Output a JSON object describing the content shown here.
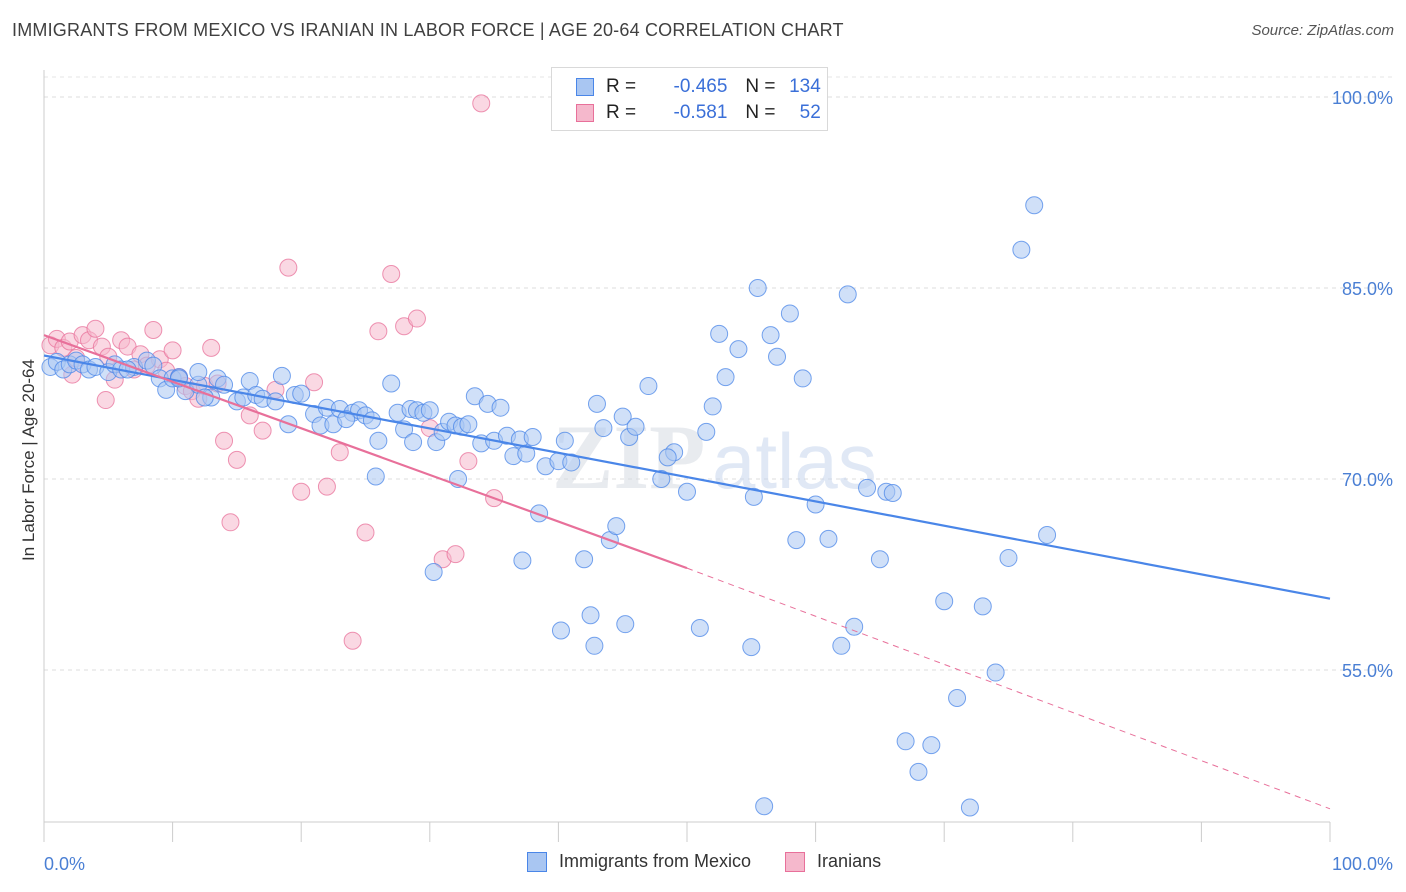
{
  "title": "IMMIGRANTS FROM MEXICO VS IRANIAN IN LABOR FORCE | AGE 20-64 CORRELATION CHART",
  "source": "Source: ZipAtlas.com",
  "colors": {
    "mexico": "#4a86e8",
    "mexico_fill": "#a9c6f2",
    "iranian": "#e8709a",
    "iranian_fill": "#f5b8cc",
    "tick_label": "#4a7fd4"
  },
  "legend_top": {
    "mexico": {
      "r_label": "R =",
      "r_value": "-0.465",
      "n_label": "N =",
      "n_value": "134"
    },
    "iranian": {
      "r_label": "R =",
      "r_value": "-0.581",
      "n_label": "N =",
      "n_value": "52"
    }
  },
  "legend_bottom": {
    "mexico": "Immigrants from Mexico",
    "iranian": "Iranians"
  },
  "chart_data": {
    "type": "scatter",
    "title": "IMMIGRANTS FROM MEXICO VS IRANIAN IN LABOR FORCE | AGE 20-64 CORRELATION CHART",
    "xlabel": "",
    "ylabel": "In Labor Force | Age 20-64",
    "x_tick_labels": [
      "0.0%",
      "100.0%"
    ],
    "y_tick_labels": [
      "100.0%",
      "85.0%",
      "70.0%",
      "55.0%"
    ],
    "y_ticks": [
      100,
      85,
      70,
      55
    ],
    "xlim": [
      0,
      100
    ],
    "ylim": [
      40,
      102
    ],
    "grid": "horizontal dashed",
    "legend_position": "top-center",
    "series": [
      {
        "name": "Immigrants from Mexico",
        "color": "#4a86e8",
        "trend": {
          "x": [
            0,
            100
          ],
          "y": [
            79.7,
            60.6
          ]
        },
        "points": [
          [
            0.5,
            78.8
          ],
          [
            1,
            79.2
          ],
          [
            1.5,
            78.6
          ],
          [
            2,
            79.0
          ],
          [
            2.5,
            79.3
          ],
          [
            3,
            79.0
          ],
          [
            3.5,
            78.6
          ],
          [
            4,
            78.8
          ],
          [
            5,
            78.4
          ],
          [
            5.5,
            79.0
          ],
          [
            6,
            78.6
          ],
          [
            7,
            78.8
          ],
          [
            8,
            79.3
          ],
          [
            8.5,
            78.9
          ],
          [
            9,
            77.9
          ],
          [
            9.5,
            77.0
          ],
          [
            10,
            77.9
          ],
          [
            10.5,
            78.0
          ],
          [
            11,
            76.9
          ],
          [
            12,
            77.4
          ],
          [
            12,
            78.4
          ],
          [
            13,
            76.4
          ],
          [
            13.5,
            77.9
          ],
          [
            14,
            77.4
          ],
          [
            15,
            76.1
          ],
          [
            15.5,
            76.4
          ],
          [
            16,
            77.7
          ],
          [
            16.5,
            76.6
          ],
          [
            17,
            76.3
          ],
          [
            18,
            76.1
          ],
          [
            18.5,
            78.1
          ],
          [
            19,
            74.3
          ],
          [
            19.5,
            76.6
          ],
          [
            20,
            76.7
          ],
          [
            21,
            75.1
          ],
          [
            21.5,
            74.2
          ],
          [
            22,
            75.6
          ],
          [
            22.5,
            74.3
          ],
          [
            23,
            75.5
          ],
          [
            24,
            75.2
          ],
          [
            24.5,
            75.4
          ],
          [
            25,
            75.0
          ],
          [
            25.5,
            74.6
          ],
          [
            26,
            73.0
          ],
          [
            27,
            77.5
          ],
          [
            27.5,
            75.2
          ],
          [
            28,
            73.9
          ],
          [
            28.5,
            75.5
          ],
          [
            29,
            75.4
          ],
          [
            29.5,
            75.2
          ],
          [
            30,
            75.4
          ],
          [
            30.5,
            72.9
          ],
          [
            31,
            73.7
          ],
          [
            31.5,
            74.5
          ],
          [
            32,
            74.2
          ],
          [
            32.5,
            74.1
          ],
          [
            33,
            74.3
          ],
          [
            33.5,
            76.5
          ],
          [
            34,
            72.8
          ],
          [
            34.5,
            75.9
          ],
          [
            35,
            73.0
          ],
          [
            35.5,
            75.6
          ],
          [
            36,
            73.4
          ],
          [
            36.5,
            71.8
          ],
          [
            37,
            73.1
          ],
          [
            37.5,
            72.0
          ],
          [
            38,
            73.3
          ],
          [
            38.5,
            67.3
          ],
          [
            39,
            71.0
          ],
          [
            40,
            71.4
          ],
          [
            40.5,
            73.0
          ],
          [
            41,
            71.3
          ],
          [
            42,
            63.7
          ],
          [
            42.5,
            59.3
          ],
          [
            43,
            75.9
          ],
          [
            43.5,
            74.0
          ],
          [
            44,
            65.2
          ],
          [
            44.5,
            66.3
          ],
          [
            45,
            74.9
          ],
          [
            45.5,
            73.3
          ],
          [
            46,
            74.1
          ],
          [
            47,
            77.3
          ],
          [
            48,
            70.0
          ],
          [
            49,
            72.1
          ],
          [
            50,
            69.0
          ],
          [
            51,
            58.3
          ],
          [
            51.5,
            73.7
          ],
          [
            52,
            75.7
          ],
          [
            52.5,
            81.4
          ],
          [
            53,
            78.0
          ],
          [
            54,
            80.2
          ],
          [
            55,
            56.8
          ],
          [
            55.5,
            85.0
          ],
          [
            56,
            44.3
          ],
          [
            56.5,
            81.3
          ],
          [
            57,
            79.6
          ],
          [
            58,
            83.0
          ],
          [
            58.5,
            65.2
          ],
          [
            59,
            77.9
          ],
          [
            60,
            68.0
          ],
          [
            61,
            65.3
          ],
          [
            62,
            56.9
          ],
          [
            62.5,
            84.5
          ],
          [
            63,
            58.4
          ],
          [
            64,
            69.3
          ],
          [
            65,
            63.7
          ],
          [
            65.5,
            69.0
          ],
          [
            66,
            68.9
          ],
          [
            67,
            49.4
          ],
          [
            68,
            47.0
          ],
          [
            69,
            49.1
          ],
          [
            70,
            60.4
          ],
          [
            71,
            52.8
          ],
          [
            72,
            44.2
          ],
          [
            73,
            60.0
          ],
          [
            74,
            54.8
          ],
          [
            75,
            63.8
          ],
          [
            76,
            88.0
          ],
          [
            77,
            91.5
          ],
          [
            78,
            65.6
          ],
          [
            10.5,
            77.9
          ],
          [
            6.5,
            78.6
          ],
          [
            12.5,
            76.4
          ],
          [
            23.5,
            74.7
          ],
          [
            28.7,
            72.9
          ],
          [
            32.2,
            70.0
          ],
          [
            25.8,
            70.2
          ],
          [
            40.2,
            58.1
          ],
          [
            48.5,
            71.7
          ],
          [
            55.2,
            68.6
          ],
          [
            45.2,
            58.6
          ],
          [
            30.3,
            62.7
          ],
          [
            37.2,
            63.6
          ],
          [
            42.8,
            56.9
          ]
        ]
      },
      {
        "name": "Iranians",
        "color": "#e8709a",
        "trend": {
          "x": [
            0,
            50
          ],
          "y": [
            81.3,
            63.0
          ]
        },
        "trend_dashed": {
          "x": [
            50,
            100
          ],
          "y": [
            63.0,
            44.1
          ]
        },
        "points": [
          [
            0.5,
            80.5
          ],
          [
            1,
            81.0
          ],
          [
            1.5,
            80.3
          ],
          [
            2,
            80.8
          ],
          [
            2.5,
            79.5
          ],
          [
            3,
            81.3
          ],
          [
            3.5,
            80.9
          ],
          [
            4,
            81.8
          ],
          [
            4.5,
            80.4
          ],
          [
            5,
            79.6
          ],
          [
            5.5,
            77.8
          ],
          [
            6,
            80.9
          ],
          [
            6.5,
            80.4
          ],
          [
            7,
            78.6
          ],
          [
            7.5,
            79.8
          ],
          [
            8,
            78.9
          ],
          [
            8.5,
            81.7
          ],
          [
            9,
            79.4
          ],
          [
            9.5,
            78.5
          ],
          [
            10,
            80.1
          ],
          [
            10.5,
            78.0
          ],
          [
            11,
            77.3
          ],
          [
            11.5,
            76.9
          ],
          [
            12,
            76.3
          ],
          [
            12.5,
            77.3
          ],
          [
            13,
            80.3
          ],
          [
            13.5,
            77.5
          ],
          [
            14,
            73.0
          ],
          [
            14.5,
            66.6
          ],
          [
            15,
            71.5
          ],
          [
            16,
            75.0
          ],
          [
            17,
            73.8
          ],
          [
            18,
            77.0
          ],
          [
            19,
            86.6
          ],
          [
            20,
            69.0
          ],
          [
            21,
            77.6
          ],
          [
            22,
            69.4
          ],
          [
            23,
            72.1
          ],
          [
            24,
            57.3
          ],
          [
            25,
            65.8
          ],
          [
            26,
            81.6
          ],
          [
            27,
            86.1
          ],
          [
            28,
            82.0
          ],
          [
            29,
            82.6
          ],
          [
            30,
            74.0
          ],
          [
            31,
            63.7
          ],
          [
            32,
            64.1
          ],
          [
            33,
            71.4
          ],
          [
            34,
            99.5
          ],
          [
            35,
            68.5
          ],
          [
            2.2,
            78.2
          ],
          [
            4.8,
            76.2
          ]
        ]
      }
    ]
  }
}
